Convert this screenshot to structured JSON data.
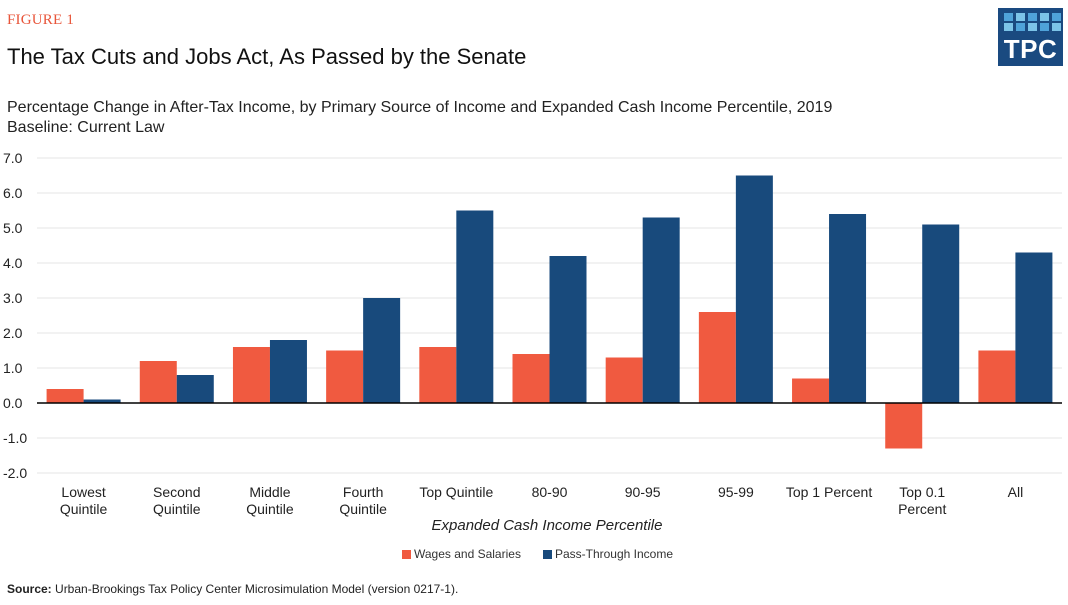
{
  "figure_label": "FIGURE 1",
  "logo": {
    "text": "TPC"
  },
  "chart_data": {
    "type": "bar",
    "title": "The Tax Cuts and Jobs Act, As Passed by the Senate",
    "subtitle_lines": [
      "Percentage Change in After-Tax Income, by Primary Source of Income and Expanded Cash Income Percentile, 2019",
      "Baseline: Current Law"
    ],
    "xlabel": "Expanded Cash Income Percentile",
    "ylabel": "",
    "ylim": [
      -2.0,
      7.0
    ],
    "yticks": [
      7.0,
      6.0,
      5.0,
      4.0,
      3.0,
      2.0,
      1.0,
      0.0,
      -1.0,
      -2.0
    ],
    "ytick_labels": [
      "7.0",
      "6.0",
      "5.0",
      "4.0",
      "3.0",
      "2.0",
      "1.0",
      "0.0",
      "-1.0",
      "-2.0"
    ],
    "grid": true,
    "legend_position": "bottom",
    "categories": [
      [
        "Lowest",
        "Quintile"
      ],
      [
        "Second",
        "Quintile"
      ],
      [
        "Middle",
        "Quintile"
      ],
      [
        "Fourth",
        "Quintile"
      ],
      [
        "Top Quintile"
      ],
      [
        "80-90"
      ],
      [
        "90-95"
      ],
      [
        "95-99"
      ],
      [
        "Top 1 Percent"
      ],
      [
        "Top 0.1",
        "Percent"
      ],
      [
        "All"
      ]
    ],
    "series": [
      {
        "name": "Wages and Salaries",
        "color": "#f05a40",
        "values": [
          0.4,
          1.2,
          1.6,
          1.5,
          1.6,
          1.4,
          1.3,
          2.6,
          0.7,
          -1.3,
          1.5
        ]
      },
      {
        "name": "Pass-Through Income",
        "color": "#184a7c",
        "values": [
          0.1,
          0.8,
          1.8,
          3.0,
          5.5,
          4.2,
          5.3,
          6.5,
          5.4,
          5.1,
          4.3
        ]
      }
    ]
  },
  "source": {
    "label": "Source:",
    "text": " Urban-Brookings Tax Policy Center Microsimulation Model (version 0217-1)."
  }
}
